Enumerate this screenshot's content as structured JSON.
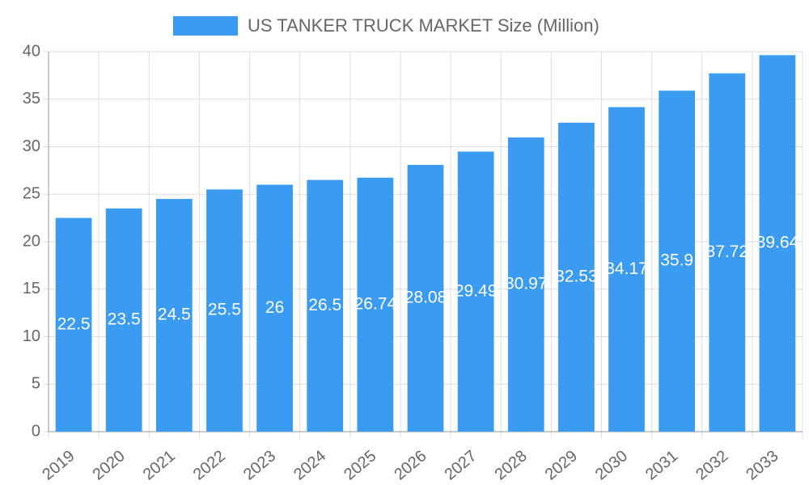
{
  "chart_data": {
    "type": "bar",
    "title": "US TANKER TRUCK MARKET Size (Million)",
    "categories": [
      "2019",
      "2020",
      "2021",
      "2022",
      "2023",
      "2024",
      "2025",
      "2026",
      "2027",
      "2028",
      "2029",
      "2030",
      "2031",
      "2032",
      "2033"
    ],
    "values": [
      22.5,
      23.5,
      24.5,
      25.5,
      26,
      26.5,
      26.74,
      28.08,
      29.49,
      30.97,
      32.53,
      34.17,
      35.9,
      37.72,
      39.64
    ],
    "color": "#3a9bf0",
    "ylim": [
      0,
      40
    ],
    "yticks": [
      0,
      5,
      10,
      15,
      20,
      25,
      30,
      35,
      40
    ],
    "grid": true
  }
}
